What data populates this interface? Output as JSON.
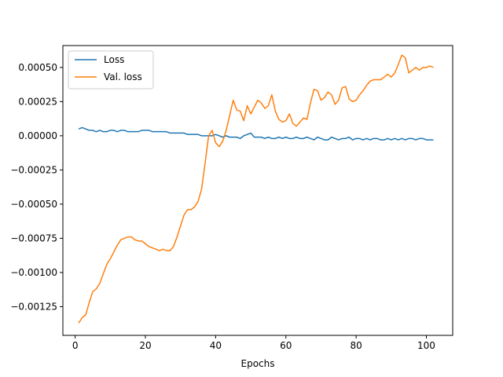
{
  "chart_data": {
    "type": "line",
    "title": "",
    "xlabel": "Epochs",
    "ylabel": "",
    "xlim": [
      -3.5,
      107.5
    ],
    "ylim": [
      -0.00146,
      0.00066
    ],
    "xticks": [
      0,
      20,
      40,
      60,
      80,
      100
    ],
    "xtick_labels": [
      "0",
      "20",
      "40",
      "60",
      "80",
      "100"
    ],
    "yticks": [
      -0.00125,
      -0.001,
      -0.00075,
      -0.0005,
      -0.00025,
      0,
      0.00025,
      0.0005
    ],
    "ytick_labels": [
      "−0.00125",
      "−0.00100",
      "−0.00075",
      "−0.00050",
      "−0.00025",
      "0.00000",
      "0.00025",
      "0.00050"
    ],
    "grid": false,
    "legend_position": "top-left",
    "x": [
      1,
      2,
      3,
      4,
      5,
      6,
      7,
      8,
      9,
      10,
      11,
      12,
      13,
      14,
      15,
      16,
      17,
      18,
      19,
      20,
      21,
      22,
      23,
      24,
      25,
      26,
      27,
      28,
      29,
      30,
      31,
      32,
      33,
      34,
      35,
      36,
      37,
      38,
      39,
      40,
      41,
      42,
      43,
      44,
      45,
      46,
      47,
      48,
      49,
      50,
      51,
      52,
      53,
      54,
      55,
      56,
      57,
      58,
      59,
      60,
      61,
      62,
      63,
      64,
      65,
      66,
      67,
      68,
      69,
      70,
      71,
      72,
      73,
      74,
      75,
      76,
      77,
      78,
      79,
      80,
      81,
      82,
      83,
      84,
      85,
      86,
      87,
      88,
      89,
      90,
      91,
      92,
      93,
      94,
      95,
      96,
      97,
      98,
      99,
      100,
      101,
      102
    ],
    "series": [
      {
        "name": "Loss",
        "color": "#1f77b4",
        "values": [
          5e-05,
          6e-05,
          5e-05,
          4e-05,
          4e-05,
          3e-05,
          4e-05,
          3e-05,
          3e-05,
          4e-05,
          4e-05,
          3e-05,
          4e-05,
          4e-05,
          3e-05,
          3e-05,
          3e-05,
          3e-05,
          4e-05,
          4e-05,
          4e-05,
          3e-05,
          3e-05,
          3e-05,
          3e-05,
          3e-05,
          2e-05,
          2e-05,
          2e-05,
          2e-05,
          2e-05,
          1e-05,
          1e-05,
          1e-05,
          1e-05,
          0.0,
          0.0,
          0.0,
          0.0,
          1e-05,
          0.0,
          -1e-05,
          0.0,
          -1e-05,
          -1e-05,
          -1e-05,
          -2e-05,
          0.0,
          1e-05,
          2e-05,
          -1e-05,
          -1e-05,
          -1e-05,
          -2e-05,
          -1e-05,
          -2e-05,
          -2e-05,
          -1e-05,
          -2e-05,
          -1e-05,
          -2e-05,
          -2e-05,
          -1e-05,
          -2e-05,
          -2e-05,
          -1e-05,
          -2e-05,
          -3e-05,
          -1e-05,
          -2e-05,
          -3e-05,
          -3e-05,
          -1e-05,
          -2e-05,
          -3e-05,
          -2e-05,
          -2e-05,
          -1e-05,
          -3e-05,
          -2e-05,
          -2e-05,
          -3e-05,
          -2e-05,
          -3e-05,
          -2e-05,
          -2e-05,
          -3e-05,
          -3e-05,
          -2e-05,
          -3e-05,
          -2e-05,
          -3e-05,
          -2e-05,
          -3e-05,
          -2e-05,
          -2e-05,
          -3e-05,
          -2e-05,
          -2e-05,
          -3e-05,
          -3e-05,
          -3e-05
        ]
      },
      {
        "name": "Val. loss",
        "color": "#ff7f0e",
        "values": [
          -0.00137,
          -0.00133,
          -0.00131,
          -0.00122,
          -0.00114,
          -0.00112,
          -0.00108,
          -0.00101,
          -0.00094,
          -0.0009,
          -0.00085,
          -0.0008,
          -0.00076,
          -0.00075,
          -0.00074,
          -0.00074,
          -0.00076,
          -0.00077,
          -0.00077,
          -0.00079,
          -0.00081,
          -0.00082,
          -0.00083,
          -0.00084,
          -0.00083,
          -0.00084,
          -0.00084,
          -0.00081,
          -0.00074,
          -0.00066,
          -0.00058,
          -0.00054,
          -0.00054,
          -0.00052,
          -0.00048,
          -0.00039,
          -0.0002,
          0.0,
          4e-05,
          -5e-05,
          -8e-05,
          -4e-05,
          4e-05,
          0.00015,
          0.00026,
          0.00019,
          0.00018,
          0.00011,
          0.00022,
          0.00016,
          0.00021,
          0.00026,
          0.00024,
          0.0002,
          0.00022,
          0.0003,
          0.00018,
          0.00012,
          0.0001,
          0.00011,
          0.00016,
          9e-05,
          7e-05,
          0.0001,
          0.00013,
          0.00012,
          0.00024,
          0.00034,
          0.00033,
          0.00026,
          0.00028,
          0.00032,
          0.0003,
          0.00023,
          0.00026,
          0.00035,
          0.00036,
          0.00027,
          0.00025,
          0.00026,
          0.0003,
          0.00033,
          0.00037,
          0.0004,
          0.00041,
          0.00041,
          0.00041,
          0.00043,
          0.00045,
          0.00043,
          0.00046,
          0.00052,
          0.00059,
          0.00057,
          0.00046,
          0.00048,
          0.0005,
          0.00048,
          0.0005,
          0.0005,
          0.00051,
          0.0005
        ]
      }
    ]
  }
}
